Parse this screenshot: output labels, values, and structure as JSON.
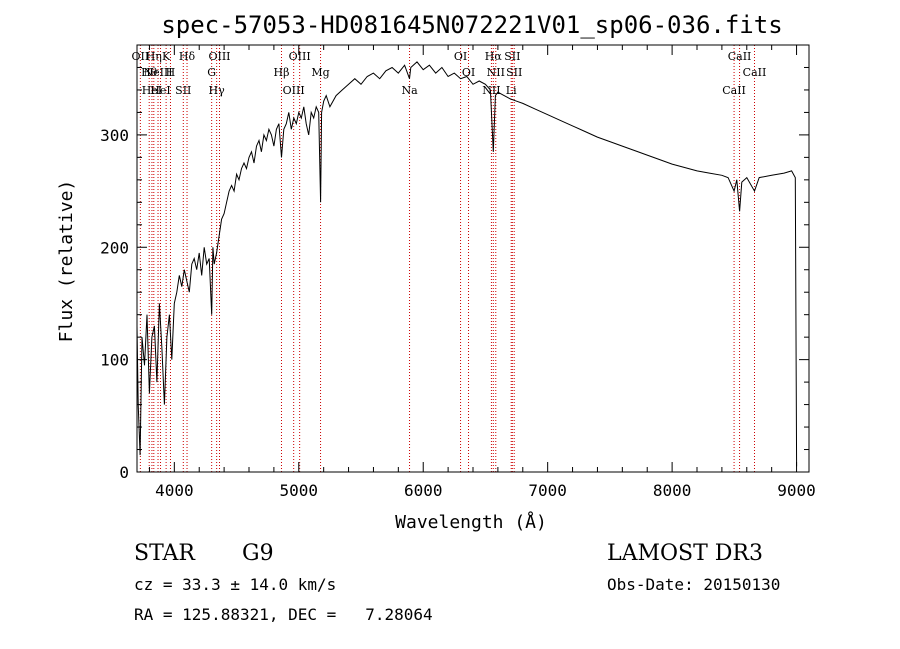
{
  "chart_data": {
    "type": "line",
    "title": "spec-57053-HD081645N072221V01_sp06-036.fits",
    "xlabel": "Wavelength (Å)",
    "ylabel": "Flux (relative)",
    "xlim": [
      3700,
      9100
    ],
    "ylim": [
      0,
      380
    ],
    "xticks": [
      4000,
      5000,
      6000,
      7000,
      8000,
      9000
    ],
    "yticks": [
      0,
      100,
      200,
      300
    ],
    "grid": false,
    "line_color": "#000000",
    "marker_color": "#cc0000",
    "series": [
      {
        "x": [
          3700,
          3710,
          3725,
          3740,
          3760,
          3780,
          3800,
          3820,
          3840,
          3860,
          3880,
          3900,
          3920,
          3940,
          3960,
          3980,
          4000,
          4020,
          4040,
          4060,
          4080,
          4100,
          4120,
          4140,
          4160,
          4180,
          4200,
          4220,
          4240,
          4260,
          4280,
          4300,
          4310,
          4320,
          4330,
          4340,
          4360,
          4380,
          4400,
          4420,
          4440,
          4460,
          4480,
          4500,
          4520,
          4540,
          4560,
          4580,
          4600,
          4620,
          4640,
          4660,
          4680,
          4700,
          4720,
          4740,
          4760,
          4780,
          4800,
          4820,
          4840,
          4861,
          4880,
          4900,
          4920,
          4940,
          4960,
          4980,
          5000,
          5020,
          5040,
          5060,
          5080,
          5100,
          5120,
          5140,
          5160,
          5175,
          5183,
          5200,
          5220,
          5250,
          5300,
          5350,
          5400,
          5450,
          5500,
          5550,
          5600,
          5650,
          5700,
          5750,
          5800,
          5850,
          5890,
          5900,
          5950,
          6000,
          6050,
          6100,
          6150,
          6200,
          6250,
          6300,
          6350,
          6400,
          6450,
          6500,
          6540,
          6563,
          6580,
          6600,
          6650,
          6700,
          6750,
          6800,
          6900,
          7000,
          7100,
          7200,
          7300,
          7400,
          7500,
          7600,
          7700,
          7800,
          7900,
          8000,
          8100,
          8200,
          8300,
          8400,
          8450,
          8498,
          8520,
          8542,
          8560,
          8600,
          8662,
          8700,
          8800,
          8900,
          8960,
          8990,
          9000
        ],
        "y": [
          130,
          60,
          15,
          120,
          95,
          140,
          70,
          120,
          130,
          80,
          150,
          110,
          60,
          120,
          140,
          100,
          150,
          160,
          175,
          165,
          180,
          170,
          160,
          185,
          190,
          180,
          195,
          175,
          200,
          185,
          190,
          140,
          200,
          185,
          190,
          195,
          210,
          225,
          230,
          240,
          250,
          255,
          250,
          265,
          260,
          270,
          275,
          270,
          280,
          285,
          275,
          290,
          295,
          285,
          300,
          295,
          305,
          300,
          290,
          305,
          310,
          280,
          305,
          310,
          320,
          305,
          315,
          310,
          320,
          315,
          325,
          310,
          300,
          320,
          315,
          325,
          320,
          240,
          320,
          330,
          335,
          325,
          335,
          340,
          345,
          350,
          345,
          352,
          355,
          350,
          357,
          360,
          355,
          362,
          350,
          360,
          365,
          358,
          362,
          355,
          360,
          352,
          355,
          350,
          352,
          345,
          348,
          345,
          340,
          285,
          335,
          338,
          335,
          332,
          330,
          328,
          323,
          318,
          313,
          308,
          303,
          298,
          294,
          290,
          286,
          282,
          278,
          274,
          271,
          268,
          266,
          264,
          262,
          250,
          260,
          232,
          258,
          262,
          250,
          262,
          264,
          266,
          268,
          262,
          5
        ]
      }
    ],
    "line_markers": [
      {
        "x": 3727,
        "label": "OII"
      },
      {
        "x": 3798,
        "label": "Hθ"
      },
      {
        "x": 3820,
        "label": "HeI"
      },
      {
        "x": 3835,
        "label": "Hη"
      },
      {
        "x": 3869,
        "label": "NeIII"
      },
      {
        "x": 3889,
        "label": "HeI"
      },
      {
        "x": 3934,
        "label": "K"
      },
      {
        "x": 3969,
        "label": "H"
      },
      {
        "x": 4072,
        "label": "SII"
      },
      {
        "x": 4102,
        "label": "Hδ"
      },
      {
        "x": 4300,
        "label": "G"
      },
      {
        "x": 4340,
        "label": "Hγ"
      },
      {
        "x": 4363,
        "label": "OIII"
      },
      {
        "x": 4861,
        "label": "Hβ"
      },
      {
        "x": 4959,
        "label": "OIII"
      },
      {
        "x": 5007,
        "label": "OIII"
      },
      {
        "x": 5175,
        "label": "Mg"
      },
      {
        "x": 5890,
        "label": "Na"
      },
      {
        "x": 6300,
        "label": "OI"
      },
      {
        "x": 6364,
        "label": "OI"
      },
      {
        "x": 6548,
        "label": "NII"
      },
      {
        "x": 6563,
        "label": "Hα"
      },
      {
        "x": 6583,
        "label": "NII"
      },
      {
        "x": 6707,
        "label": "Li"
      },
      {
        "x": 6716,
        "label": "SII"
      },
      {
        "x": 6731,
        "label": "SII"
      },
      {
        "x": 8498,
        "label": "CaII"
      },
      {
        "x": 8542,
        "label": "CaII"
      },
      {
        "x": 8662,
        "label": "CaII"
      }
    ]
  },
  "info": {
    "class": "STAR",
    "subclass": "G9",
    "survey": "LAMOST DR3",
    "cz": "cz = 33.3 ± 14.0 km/s",
    "obs_date": "Obs-Date: 20150130",
    "coords": "RA = 125.88321, DEC =   7.28064"
  }
}
